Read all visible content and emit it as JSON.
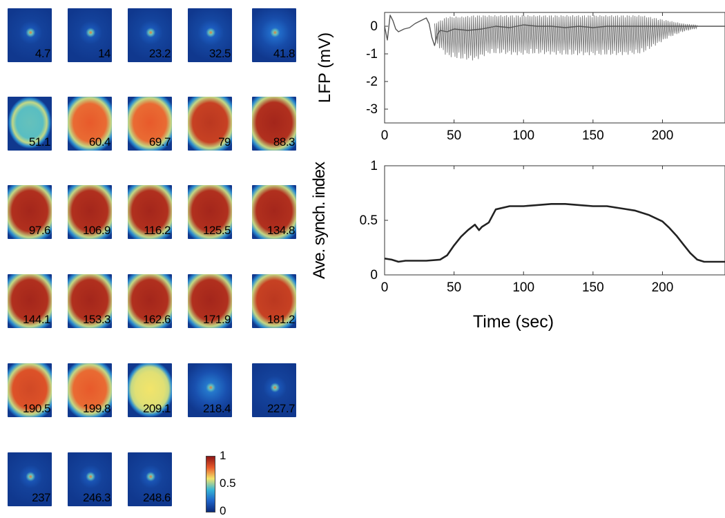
{
  "tiles": [
    {
      "label": "4.7",
      "intensity": 0.05
    },
    {
      "label": "14",
      "intensity": 0.05
    },
    {
      "label": "23.2",
      "intensity": 0.06
    },
    {
      "label": "32.5",
      "intensity": 0.08
    },
    {
      "label": "41.8",
      "intensity": 0.12
    },
    {
      "label": "51.1",
      "intensity": 0.45
    },
    {
      "label": "60.4",
      "intensity": 0.8
    },
    {
      "label": "69.7",
      "intensity": 0.8
    },
    {
      "label": "79",
      "intensity": 0.9
    },
    {
      "label": "88.3",
      "intensity": 0.95
    },
    {
      "label": "97.6",
      "intensity": 0.95
    },
    {
      "label": "106.9",
      "intensity": 0.95
    },
    {
      "label": "116.2",
      "intensity": 0.95
    },
    {
      "label": "125.5",
      "intensity": 0.95
    },
    {
      "label": "134.8",
      "intensity": 0.95
    },
    {
      "label": "144.1",
      "intensity": 0.95
    },
    {
      "label": "153.3",
      "intensity": 0.95
    },
    {
      "label": "162.6",
      "intensity": 0.95
    },
    {
      "label": "171.9",
      "intensity": 0.95
    },
    {
      "label": "181.2",
      "intensity": 0.9
    },
    {
      "label": "190.5",
      "intensity": 0.85
    },
    {
      "label": "199.8",
      "intensity": 0.8
    },
    {
      "label": "209.1",
      "intensity": 0.6
    },
    {
      "label": "218.4",
      "intensity": 0.15
    },
    {
      "label": "227.7",
      "intensity": 0.05
    },
    {
      "label": "237",
      "intensity": 0.05
    },
    {
      "label": "246.3",
      "intensity": 0.05
    },
    {
      "label": "248.6",
      "intensity": 0.05
    }
  ],
  "colorbar": {
    "max_label": "1",
    "mid_label": "0.5",
    "min_label": "0",
    "colors": [
      "#0b2a7a",
      "#1f63c8",
      "#37b5d6",
      "#f2e46a",
      "#e85a2b",
      "#8d1515"
    ]
  },
  "chart_data": [
    {
      "type": "line",
      "ylabel": "LFP (mV)",
      "xlabel": "",
      "xlim": [
        0,
        245
      ],
      "ylim": [
        -3.5,
        0.5
      ],
      "xticks": [
        0,
        50,
        100,
        150,
        200
      ],
      "yticks": [
        0,
        -1,
        -2,
        -3
      ],
      "series": [
        {
          "color": "#555555",
          "x": [
            0,
            2,
            4,
            6,
            8,
            10,
            12,
            14,
            18,
            22,
            26,
            30,
            32,
            34,
            36,
            38,
            40,
            45,
            50,
            60,
            70,
            80,
            90,
            100,
            110,
            120,
            130,
            140,
            150,
            160,
            170,
            180,
            190,
            200,
            210,
            220,
            230,
            245
          ],
          "y": [
            0,
            -0.5,
            0.4,
            0.2,
            -0.1,
            -0.2,
            -0.15,
            -0.1,
            -0.05,
            0.1,
            0.2,
            0.3,
            0.1,
            -0.4,
            -0.7,
            -0.3,
            -0.15,
            -0.2,
            -0.1,
            -0.15,
            -0.1,
            0,
            -0.05,
            0.05,
            0,
            0,
            -0.05,
            0,
            -0.05,
            0,
            0,
            0,
            0,
            0,
            0,
            0,
            0,
            0
          ]
        }
      ],
      "oscillation_envelope": {
        "x": [
          36,
          45,
          55,
          65,
          75,
          85,
          95,
          110,
          130,
          150,
          170,
          185,
          195,
          205,
          215,
          225
        ],
        "upper": [
          0.1,
          0.35,
          0.35,
          0.4,
          0.4,
          0.4,
          0.4,
          0.4,
          0.4,
          0.4,
          0.4,
          0.4,
          0.3,
          0.2,
          0.1,
          0.05
        ],
        "lower": [
          -0.6,
          -1.1,
          -1.2,
          -1.25,
          -1.0,
          -1.0,
          -1.05,
          -1.0,
          -1.05,
          -1.05,
          -1.05,
          -1.0,
          -0.7,
          -0.4,
          -0.2,
          -0.08
        ]
      }
    },
    {
      "type": "line",
      "ylabel": "Ave. synch. index",
      "xlabel": "Time (sec)",
      "xlim": [
        0,
        245
      ],
      "ylim": [
        0,
        1
      ],
      "xticks": [
        0,
        50,
        100,
        150,
        200
      ],
      "yticks": [
        0,
        0.5,
        1
      ],
      "series": [
        {
          "color": "#222222",
          "x": [
            0,
            5,
            10,
            15,
            20,
            30,
            40,
            45,
            50,
            55,
            60,
            65,
            68,
            70,
            75,
            80,
            90,
            100,
            110,
            120,
            130,
            140,
            150,
            160,
            170,
            180,
            190,
            200,
            205,
            210,
            215,
            220,
            225,
            230,
            240,
            245
          ],
          "y": [
            0.15,
            0.14,
            0.12,
            0.13,
            0.13,
            0.13,
            0.14,
            0.18,
            0.27,
            0.35,
            0.41,
            0.46,
            0.41,
            0.44,
            0.48,
            0.6,
            0.63,
            0.63,
            0.64,
            0.65,
            0.65,
            0.64,
            0.63,
            0.63,
            0.61,
            0.59,
            0.55,
            0.49,
            0.43,
            0.36,
            0.28,
            0.2,
            0.14,
            0.12,
            0.12,
            0.12
          ]
        }
      ]
    }
  ]
}
